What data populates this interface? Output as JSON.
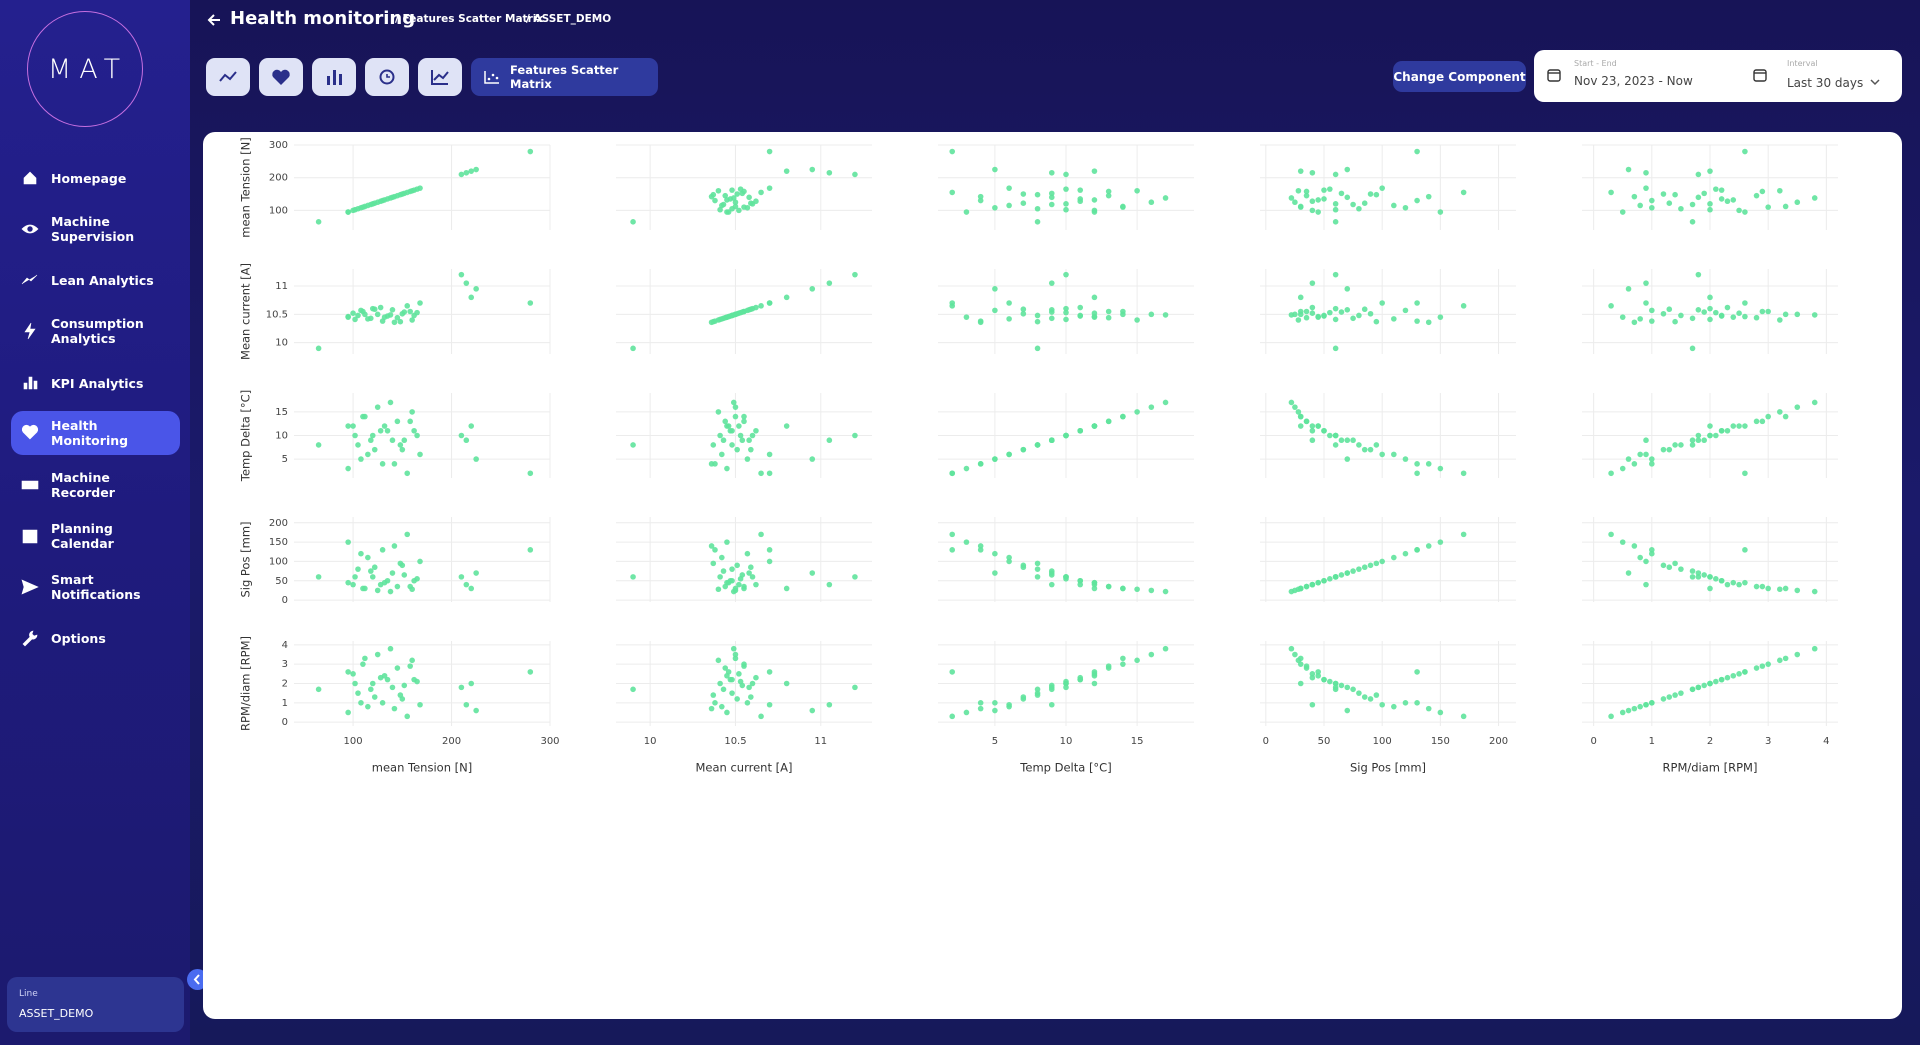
{
  "logo": "MAT",
  "header": {
    "title": "Health monitoring",
    "breadcrumbs": [
      "/ Features Scatter Matrix",
      "/ ASSET_DEMO"
    ]
  },
  "nav": [
    "Homepage",
    "Machine Supervision",
    "Lean Analytics",
    "Consumption Analytics",
    "KPI Analytics",
    "Health Monitoring",
    "Machine Recorder",
    "Planning Calendar",
    "Smart Notifications",
    "Options"
  ],
  "active_nav": 5,
  "toolbar": {
    "tab": "Features Scatter Matrix",
    "change_component": "Change Component",
    "date_range": {
      "label": "Start - End",
      "value": "Nov 23, 2023 - Now"
    },
    "interval": {
      "label": "Interval",
      "value": "Last 30 days"
    }
  },
  "line_selector": {
    "label": "Line",
    "value": "ASSET_DEMO"
  },
  "chart_data": {
    "type": "scatter_matrix",
    "color": "#5fe39c",
    "grid": true,
    "dimensions": [
      {
        "label": "mean Tension [N]",
        "range": [
          40,
          300
        ],
        "ticks": [
          100,
          200,
          300
        ],
        "values": [
          95,
          100,
          105,
          110,
          115,
          120,
          125,
          130,
          135,
          140,
          145,
          150,
          155,
          160,
          165,
          95,
          108,
          118,
          128,
          138,
          148,
          158,
          168,
          102,
          112,
          122,
          132,
          142,
          152,
          162,
          210,
          215,
          220,
          225,
          280,
          65
        ]
      },
      {
        "label": "Mean current [A]",
        "range": [
          9.8,
          11.3
        ],
        "ticks": [
          10,
          10.5,
          11
        ],
        "values": [
          10.45,
          10.52,
          10.48,
          10.55,
          10.42,
          10.6,
          10.5,
          10.38,
          10.47,
          10.58,
          10.44,
          10.51,
          10.65,
          10.4,
          10.53,
          10.46,
          10.57,
          10.43,
          10.62,
          10.49,
          10.37,
          10.55,
          10.7,
          10.41,
          10.5,
          10.59,
          10.45,
          10.36,
          10.54,
          10.48,
          11.2,
          11.05,
          10.8,
          10.95,
          10.7,
          9.9
        ]
      },
      {
        "label": "Temp Delta [°C]",
        "range": [
          1,
          19
        ],
        "ticks": [
          5,
          10,
          15
        ],
        "values": [
          3,
          12,
          8,
          14,
          6,
          10,
          16,
          4,
          11,
          9,
          13,
          7,
          2,
          15,
          10,
          12,
          5,
          9,
          11,
          17,
          8,
          13,
          6,
          10,
          14,
          7,
          12,
          4,
          9,
          11,
          10,
          9,
          12,
          5,
          2,
          8
        ]
      },
      {
        "label": "Sig Pos [mm]",
        "range": [
          -5,
          215
        ],
        "ticks": [
          0,
          50,
          100,
          150,
          200
        ],
        "values": [
          150,
          40,
          80,
          30,
          110,
          60,
          25,
          130,
          50,
          70,
          35,
          90,
          170,
          28,
          55,
          45,
          120,
          75,
          40,
          22,
          95,
          35,
          100,
          60,
          30,
          85,
          45,
          140,
          65,
          50,
          60,
          40,
          30,
          70,
          130,
          60
        ]
      },
      {
        "label": "RPM/diam [RPM]",
        "range": [
          -0.2,
          4.2
        ],
        "ticks": [
          0,
          1,
          2,
          3,
          4
        ],
        "values": [
          0.5,
          2.5,
          1.5,
          3,
          0.8,
          2,
          3.5,
          1,
          2.2,
          1.8,
          2.8,
          1.2,
          0.3,
          3.2,
          2.1,
          2.6,
          1,
          1.7,
          2.3,
          3.8,
          1.4,
          2.9,
          0.9,
          2,
          3.3,
          1.3,
          2.4,
          0.7,
          1.9,
          2.2,
          1.8,
          0.9,
          2,
          0.6,
          2.6,
          1.7
        ]
      }
    ]
  }
}
